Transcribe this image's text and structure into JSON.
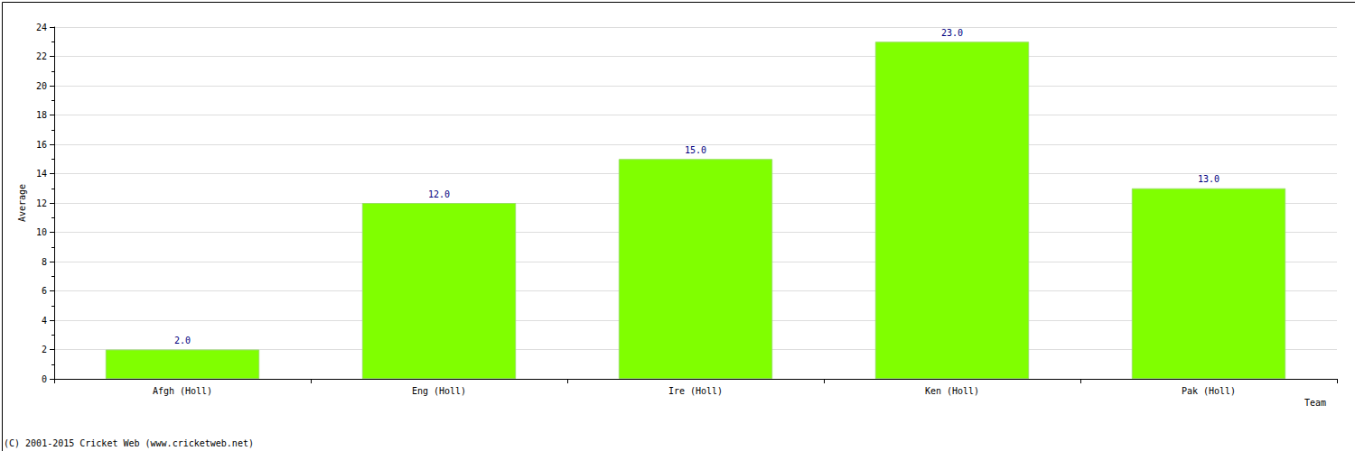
{
  "chart_data": {
    "type": "bar",
    "x_label": "Team",
    "y_label": "Average",
    "categories": [
      "Afgh (Holl)",
      "Eng (Holl)",
      "Ire (Holl)",
      "Ken (Holl)",
      "Pak (Holl)"
    ],
    "values": [
      2,
      12,
      15,
      23,
      13
    ],
    "value_labels": [
      "2.0",
      "12.0",
      "15.0",
      "23.0",
      "13.0"
    ],
    "data_labels": true,
    "color": "#80ff00",
    "ylim": [
      0,
      24
    ],
    "yticks": [
      0,
      2,
      4,
      6,
      8,
      10,
      12,
      14,
      16,
      18,
      20,
      22,
      24
    ],
    "grid": true,
    "annotations": [
      "(C) 2001-2015 Cricket Web (www.cricketweb.net)"
    ]
  }
}
